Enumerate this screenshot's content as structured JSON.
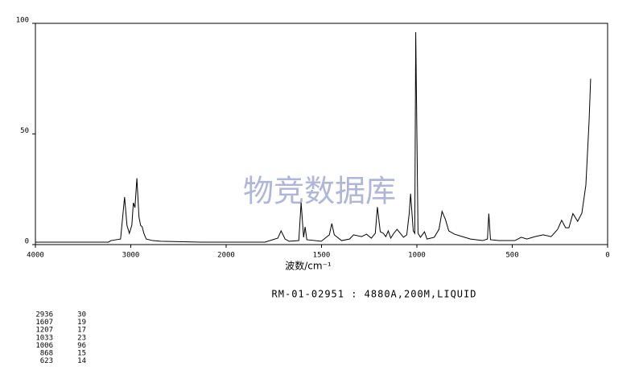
{
  "chart_data": {
    "type": "line",
    "xlabel": "波数/cm⁻¹",
    "subtitle": "RM-01-02951 : 4880A,200M,LIQUID",
    "watermark": "物竞数据库",
    "color": "#000000",
    "xlim": [
      4000,
      0
    ],
    "xticks": [
      4000,
      3000,
      2000,
      1500,
      1000,
      500,
      0
    ],
    "ylim": [
      0,
      100
    ],
    "yticks": [
      0,
      50,
      100
    ],
    "x": [
      4000,
      3234,
      3208,
      3107,
      3065,
      3040,
      3015,
      2989,
      2973,
      2956,
      2936,
      2914,
      2897,
      2880,
      2863,
      2838,
      2771,
      2686,
      2265,
      2000,
      1797,
      1729,
      1712,
      1691,
      1670,
      1619,
      1607,
      1594,
      1586,
      1577,
      1501,
      1459,
      1446,
      1433,
      1395,
      1353,
      1332,
      1290,
      1264,
      1239,
      1218,
      1207,
      1192,
      1176,
      1163,
      1150,
      1137,
      1121,
      1104,
      1087,
      1070,
      1053,
      1040,
      1033,
      1019,
      1011,
      1006,
      994,
      981,
      960,
      947,
      909,
      884,
      868,
      850,
      833,
      803,
      761,
      719,
      655,
      630,
      623,
      614,
      571,
      529,
      486,
      453,
      423,
      381,
      338,
      296,
      262,
      241,
      220,
      203,
      182,
      157,
      135,
      114,
      97,
      89
    ],
    "values": [
      1.1,
      1.1,
      1.8,
      2.5,
      21.5,
      8.7,
      5.1,
      8.7,
      18.9,
      16.7,
      30,
      12.4,
      8.7,
      8,
      5.1,
      2.5,
      1.8,
      1.5,
      1.1,
      1.1,
      1.1,
      2.9,
      6.2,
      2.5,
      1.5,
      1.8,
      19,
      3.3,
      8,
      2.2,
      1.5,
      4.4,
      9.5,
      4.4,
      1.8,
      2.5,
      4.4,
      3.6,
      4.7,
      2.9,
      5.1,
      17,
      5.8,
      5.1,
      3.6,
      6.2,
      2.9,
      5.1,
      6.9,
      5.1,
      3.3,
      4.4,
      14.2,
      23,
      6.2,
      5.1,
      96,
      5.1,
      3.3,
      5.8,
      2.5,
      3.3,
      6.9,
      15,
      11.3,
      6.2,
      4.7,
      3.6,
      2.5,
      1.8,
      2.5,
      14,
      2.2,
      1.8,
      1.8,
      1.8,
      3.3,
      2.5,
      3.6,
      4.4,
      3.6,
      6.9,
      11,
      7.6,
      7.6,
      14,
      10.5,
      14.2,
      26.9,
      56,
      75
    ],
    "peak_table": [
      [
        2936,
        30
      ],
      [
        1607,
        19
      ],
      [
        1207,
        17
      ],
      [
        1033,
        23
      ],
      [
        1006,
        96
      ],
      [
        868,
        15
      ],
      [
        623,
        14
      ]
    ]
  }
}
